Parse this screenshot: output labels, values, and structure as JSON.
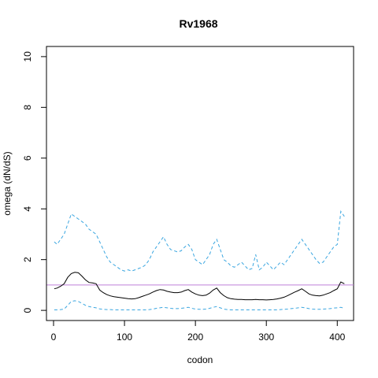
{
  "chart_data": {
    "type": "line",
    "title": "Rv1968",
    "xlabel": "codon",
    "ylabel": "omega (dN/dS)",
    "xlim": [
      -10,
      423
    ],
    "ylim": [
      -0.4,
      10.4
    ],
    "x_ticks": [
      "0",
      "100",
      "200",
      "300",
      "400"
    ],
    "y_ticks": [
      "0",
      "2",
      "4",
      "6",
      "8",
      "10"
    ],
    "grid": false,
    "legend": "none",
    "reference_line": {
      "y": 1,
      "color": "#bf7fd9"
    },
    "series": [
      {
        "role": "upper",
        "color": "#3aa6e0",
        "dash": "dashed",
        "x": [
          1,
          5,
          10,
          15,
          20,
          25,
          30,
          35,
          40,
          45,
          50,
          55,
          60,
          65,
          70,
          75,
          80,
          85,
          90,
          95,
          100,
          105,
          110,
          115,
          120,
          125,
          130,
          135,
          140,
          145,
          150,
          155,
          160,
          165,
          170,
          175,
          180,
          185,
          190,
          195,
          200,
          205,
          210,
          215,
          220,
          225,
          230,
          235,
          240,
          245,
          250,
          255,
          260,
          265,
          270,
          275,
          280,
          285,
          290,
          295,
          300,
          305,
          310,
          315,
          320,
          325,
          330,
          335,
          340,
          345,
          350,
          355,
          360,
          365,
          370,
          375,
          380,
          385,
          390,
          395,
          400,
          405,
          410
        ],
        "values": [
          2.7,
          2.6,
          2.8,
          3.0,
          3.4,
          3.8,
          3.7,
          3.6,
          3.5,
          3.4,
          3.2,
          3.1,
          3.0,
          2.7,
          2.4,
          2.1,
          1.9,
          1.8,
          1.7,
          1.6,
          1.55,
          1.6,
          1.55,
          1.6,
          1.65,
          1.7,
          1.8,
          2.0,
          2.3,
          2.5,
          2.7,
          2.9,
          2.6,
          2.4,
          2.35,
          2.3,
          2.35,
          2.5,
          2.6,
          2.4,
          2.0,
          1.9,
          1.8,
          2.0,
          2.2,
          2.6,
          2.8,
          2.4,
          2.0,
          1.9,
          1.75,
          1.7,
          1.8,
          1.9,
          1.75,
          1.6,
          1.65,
          2.2,
          1.6,
          1.7,
          1.9,
          1.75,
          1.6,
          1.75,
          1.9,
          1.8,
          2.0,
          2.2,
          2.4,
          2.6,
          2.8,
          2.6,
          2.4,
          2.2,
          2.0,
          1.85,
          1.9,
          2.1,
          2.3,
          2.5,
          2.6,
          3.9,
          3.7
        ]
      },
      {
        "role": "estimate",
        "color": "#000000",
        "dash": "solid",
        "x": [
          1,
          5,
          10,
          15,
          20,
          25,
          30,
          35,
          40,
          45,
          50,
          55,
          60,
          65,
          70,
          75,
          80,
          85,
          90,
          95,
          100,
          105,
          110,
          115,
          120,
          125,
          130,
          135,
          140,
          145,
          150,
          155,
          160,
          165,
          170,
          175,
          180,
          185,
          190,
          195,
          200,
          205,
          210,
          215,
          220,
          225,
          230,
          235,
          240,
          245,
          250,
          255,
          260,
          265,
          270,
          275,
          280,
          285,
          290,
          295,
          300,
          305,
          310,
          315,
          320,
          325,
          330,
          335,
          340,
          345,
          350,
          355,
          360,
          365,
          370,
          375,
          380,
          385,
          390,
          395,
          400,
          405,
          410
        ],
        "values": [
          0.85,
          0.88,
          0.95,
          1.05,
          1.3,
          1.45,
          1.5,
          1.48,
          1.35,
          1.2,
          1.1,
          1.08,
          1.05,
          0.8,
          0.7,
          0.62,
          0.57,
          0.54,
          0.52,
          0.5,
          0.48,
          0.46,
          0.45,
          0.46,
          0.5,
          0.55,
          0.6,
          0.65,
          0.72,
          0.78,
          0.82,
          0.8,
          0.75,
          0.72,
          0.7,
          0.7,
          0.72,
          0.78,
          0.82,
          0.72,
          0.65,
          0.6,
          0.58,
          0.6,
          0.68,
          0.8,
          0.88,
          0.7,
          0.58,
          0.5,
          0.46,
          0.44,
          0.43,
          0.43,
          0.42,
          0.42,
          0.42,
          0.43,
          0.42,
          0.42,
          0.41,
          0.42,
          0.43,
          0.45,
          0.48,
          0.52,
          0.58,
          0.65,
          0.72,
          0.78,
          0.85,
          0.75,
          0.65,
          0.6,
          0.58,
          0.57,
          0.6,
          0.65,
          0.7,
          0.78,
          0.85,
          1.12,
          1.05
        ]
      },
      {
        "role": "lower",
        "color": "#3aa6e0",
        "dash": "dashed",
        "x": [
          1,
          5,
          10,
          15,
          20,
          25,
          30,
          35,
          40,
          45,
          50,
          55,
          60,
          65,
          70,
          75,
          80,
          85,
          90,
          95,
          100,
          105,
          110,
          115,
          120,
          125,
          130,
          135,
          140,
          145,
          150,
          155,
          160,
          165,
          170,
          175,
          180,
          185,
          190,
          195,
          200,
          205,
          210,
          215,
          220,
          225,
          230,
          235,
          240,
          245,
          250,
          255,
          260,
          265,
          270,
          275,
          280,
          285,
          290,
          295,
          300,
          305,
          310,
          315,
          320,
          325,
          330,
          335,
          340,
          345,
          350,
          355,
          360,
          365,
          370,
          375,
          380,
          385,
          390,
          395,
          400,
          405,
          410
        ],
        "values": [
          0.02,
          0.02,
          0.03,
          0.05,
          0.2,
          0.35,
          0.38,
          0.35,
          0.28,
          0.2,
          0.15,
          0.12,
          0.1,
          0.06,
          0.04,
          0.03,
          0.03,
          0.02,
          0.02,
          0.02,
          0.02,
          0.02,
          0.02,
          0.02,
          0.02,
          0.02,
          0.02,
          0.03,
          0.05,
          0.08,
          0.1,
          0.12,
          0.1,
          0.08,
          0.07,
          0.07,
          0.08,
          0.1,
          0.12,
          0.08,
          0.05,
          0.04,
          0.04,
          0.05,
          0.08,
          0.12,
          0.15,
          0.1,
          0.05,
          0.03,
          0.02,
          0.02,
          0.02,
          0.02,
          0.02,
          0.02,
          0.02,
          0.02,
          0.02,
          0.02,
          0.02,
          0.02,
          0.02,
          0.02,
          0.03,
          0.04,
          0.05,
          0.07,
          0.08,
          0.1,
          0.12,
          0.1,
          0.07,
          0.05,
          0.04,
          0.04,
          0.05,
          0.06,
          0.07,
          0.09,
          0.1,
          0.12,
          0.08
        ]
      }
    ]
  }
}
